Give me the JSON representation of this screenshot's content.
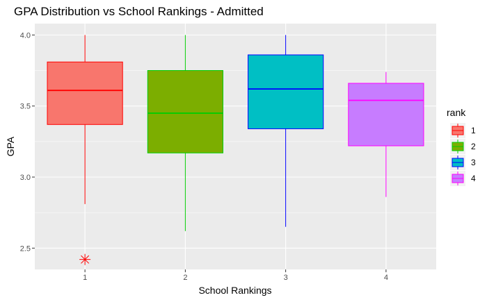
{
  "chart_data": {
    "type": "boxplot",
    "title": "GPA Distribution vs School Rankings - Admitted",
    "xlabel": "School Rankings",
    "ylabel": "GPA",
    "categories": [
      "1",
      "2",
      "3",
      "4"
    ],
    "ylim": [
      2.35,
      4.08
    ],
    "yticks": [
      2.5,
      3.0,
      3.5,
      4.0
    ],
    "ytick_labels": [
      "2.5",
      "3.0",
      "3.5",
      "4.0"
    ],
    "grid": true,
    "legend": {
      "title": "rank",
      "position": "right",
      "labels": [
        "1",
        "2",
        "3",
        "4"
      ]
    },
    "series": [
      {
        "category": "1",
        "min": 2.81,
        "q1": 3.37,
        "median": 3.61,
        "q3": 3.81,
        "max": 4.0,
        "outliers": [
          2.42
        ],
        "fill": "#F8766D",
        "line": "#FF0000"
      },
      {
        "category": "2",
        "min": 2.62,
        "q1": 3.17,
        "median": 3.45,
        "q3": 3.75,
        "max": 4.0,
        "outliers": [],
        "fill": "#7CAE00",
        "line": "#00CD00"
      },
      {
        "category": "3",
        "min": 2.65,
        "q1": 3.34,
        "median": 3.62,
        "q3": 3.86,
        "max": 4.0,
        "outliers": [],
        "fill": "#00BFC4",
        "line": "#0000FF"
      },
      {
        "category": "4",
        "min": 2.86,
        "q1": 3.22,
        "median": 3.54,
        "q3": 3.66,
        "max": 3.74,
        "outliers": [],
        "fill": "#C77CFF",
        "line": "#FF00FF"
      }
    ]
  }
}
